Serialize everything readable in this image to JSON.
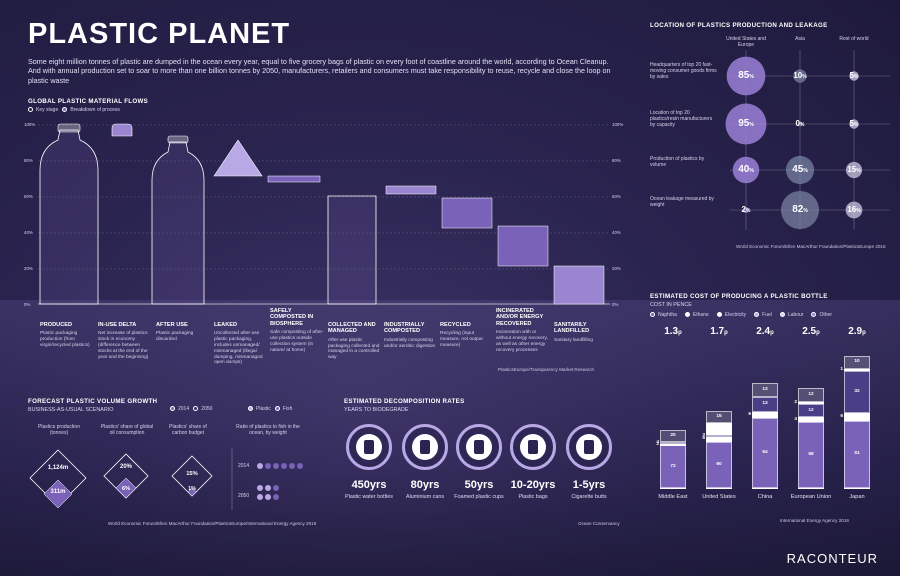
{
  "header": {
    "title": "PLASTIC PLANET",
    "intro": "Some eight million tonnes of plastic are dumped in the ocean every year, equal to five grocery bags of plastic on every foot of coastline around the world, according to Ocean Cleanup. And with annual production set to soar to more than one billion tonnes by 2050, manufacturers, retailers and consumers must take responsibility to reuse, recycle and close the loop on plastic waste"
  },
  "flows": {
    "title": "GLOBAL PLASTIC MATERIAL FLOWS",
    "legend_key": "Key stage",
    "legend_breakdown": "Breakdown of process",
    "y_ticks": [
      "100%",
      "80%",
      "60%",
      "40%",
      "20%",
      "0%"
    ],
    "source": "PlasticsEurope/Transparency Market Research",
    "stages": [
      {
        "label": "PRODUCED",
        "desc": "Plastic packaging production (from virgin/recycled plastics)"
      },
      {
        "label": "IN-USE DELTA",
        "desc": "Net increase of plastics stock in economy (difference between stocks at the end of the year and the beginning)"
      },
      {
        "label": "AFTER USE",
        "desc": "Plastic packaging discarded"
      },
      {
        "label": "LEAKED",
        "desc": "Uncollected after-use plastic packaging, includes unmanaged/ mismanaged (illegal dumping, mismanaged open dumps)"
      },
      {
        "label": "SAFELY COMPOSTED IN BIOSPHERE",
        "desc": "Safe composting of after-use plastics outside collection system (in nature/ at home)"
      },
      {
        "label": "COLLECTED AND MANAGED",
        "desc": "After-use plastic packaging collected and managed in a controlled way"
      },
      {
        "label": "INDUSTRIALLY COMPOSTED",
        "desc": "Industrially composting and/or aerobic digestion"
      },
      {
        "label": "RECYCLED",
        "desc": "Recycling (input measure, not output measure)"
      },
      {
        "label": "INCINERATED AND/OR ENERGY RECOVERED",
        "desc": "Incineration with or without energy recovery, as well as other energy recovery processes"
      },
      {
        "label": "SANITARILY LANDFILLED",
        "desc": "Sanitary landfilling"
      }
    ]
  },
  "location": {
    "title": "LOCATION OF PLASTICS PRODUCTION AND LEAKAGE",
    "columns": [
      "United States and Europe",
      "Asia",
      "Rest of world"
    ],
    "rows": [
      {
        "label": "Headquarters of top 20 fast-moving consumer goods firms by sales",
        "values": [
          "85",
          "10",
          "5"
        ]
      },
      {
        "label": "Location of top 20 plastics/resin manufacturers by capacity",
        "values": [
          "95",
          "0",
          "5"
        ]
      },
      {
        "label": "Production of plastics by volume",
        "values": [
          "40",
          "45",
          "15"
        ]
      },
      {
        "label": "Ocean leakage measured by weight",
        "values": [
          "2",
          "82",
          "16"
        ]
      }
    ],
    "percent_sign": "%",
    "source": "World Economic Forum/Ellen MacArthur Foundation/PlasticsEurope 2016"
  },
  "cost": {
    "title": "ESTIMATED COST OF PRODUCING A PLASTIC BOTTLE",
    "subtitle": "COST IN PENCE",
    "legend": [
      "Naphtha",
      "Ethane",
      "Electricity",
      "Fuel",
      "Labour",
      "Other"
    ],
    "source": "International Energy Agency 2016",
    "bars": [
      {
        "category": "Middle East",
        "total": "1.3",
        "segments": [
          "72",
          "2",
          "4",
          "20"
        ]
      },
      {
        "category": "United States",
        "total": "1.7",
        "segments": [
          "60",
          "6",
          "3",
          "15",
          "15"
        ]
      },
      {
        "category": "China",
        "total": "2.4",
        "segments": [
          "64",
          "6",
          "13",
          "13"
        ]
      },
      {
        "category": "European Union",
        "total": "2.5",
        "segments": [
          "58",
          "4",
          "12",
          "2",
          "12"
        ]
      },
      {
        "category": "Japan",
        "total": "2.9",
        "segments": [
          "51",
          "6",
          "32",
          "1",
          "10"
        ]
      }
    ],
    "unit": "p"
  },
  "growth": {
    "title": "FORECAST PLASTIC VOLUME GROWTH",
    "subtitle": "BUSINESS-AS-USUAL SCENARIO",
    "legend_2014": "2014",
    "legend_2050": "2050",
    "legend_plastic": "Plastic",
    "legend_fish": "Fish",
    "col1": "Plastics production (tonnes)",
    "col2": "Plastics' share of global oil consumption",
    "col3": "Plastics' share of carbon budget",
    "col4": "Ratio of plastics to fish in the ocean, by weight",
    "v1_2050": "1,124m",
    "v1_2014": "311m",
    "v2_2050": "20%",
    "v2_2014": "6%",
    "v3_2050": "15%",
    "v3_2014": "1%",
    "year_2014": "2014",
    "year_2050": "2050",
    "source": "World Economic Forum/Ellen MacArthur Foundation/PlasticsEurope/International Energy Agency 2016"
  },
  "decomp": {
    "title": "ESTIMATED DECOMPOSITION RATES",
    "subtitle": "YEARS TO BIODEGRADE",
    "source": "Ocean Conservancy",
    "items": [
      {
        "value": "450yrs",
        "label": "Plastic water bottles"
      },
      {
        "value": "80yrs",
        "label": "Aluminium cans"
      },
      {
        "value": "50yrs",
        "label": "Foamed plastic cups"
      },
      {
        "value": "10-20yrs",
        "label": "Plastic bags"
      },
      {
        "value": "1-5yrs",
        "label": "Cigarette butts"
      }
    ]
  },
  "logo": "RACONTEUR",
  "colors": {
    "accent": "#7a62b8",
    "accent_light": "#b9a8e6",
    "white": "#ffffff"
  }
}
